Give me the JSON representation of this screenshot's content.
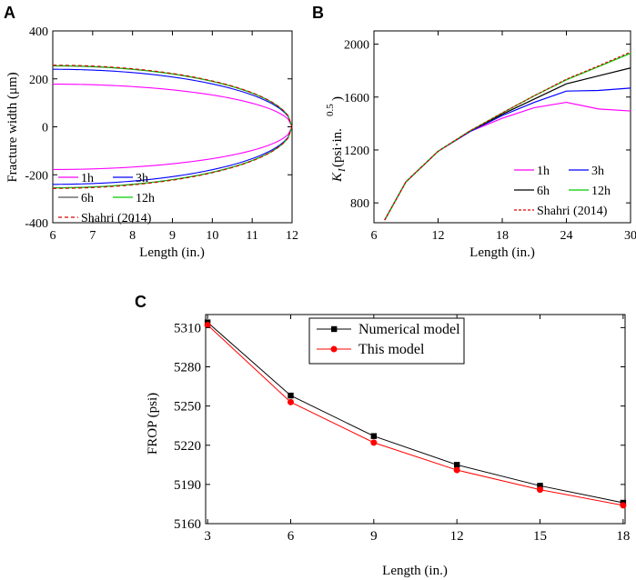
{
  "chart_data": [
    {
      "panel": "A",
      "type": "line",
      "xlabel": "Length (in.)",
      "ylabel": "Fracture width (μm)",
      "xlim": [
        6,
        12
      ],
      "ylim": [
        -400,
        400
      ],
      "xticks": [
        "6",
        "7",
        "8",
        "9",
        "10",
        "11",
        "12"
      ],
      "yticks": [
        "-400",
        "-200",
        "0",
        "200",
        "400"
      ],
      "tip_x": 12,
      "series": [
        {
          "name": "1h",
          "color": "#ff00ff",
          "dash": "",
          "half_width_at_6": 178
        },
        {
          "name": "3h",
          "color": "#0000ff",
          "dash": "",
          "half_width_at_6": 240
        },
        {
          "name": "6h",
          "color": "#555555",
          "dash": "",
          "half_width_at_6": 254
        },
        {
          "name": "12h",
          "color": "#00cc00",
          "dash": "",
          "half_width_at_6": 255
        },
        {
          "name": "Shahri (2014)",
          "color": "#dd0000",
          "dash": "4,3",
          "half_width_at_6": 257
        }
      ],
      "legend": [
        [
          "1h",
          "3h"
        ],
        [
          "6h",
          "12h"
        ],
        [
          "Shahri (2014)"
        ]
      ]
    },
    {
      "panel": "B",
      "type": "line",
      "xlabel": "Length (in.)",
      "ylabel_main": "K",
      "ylabel_sub": "I",
      "ylabel_rest": " (psi·in.",
      "ylabel_sup": "0.5",
      "ylabel_close": ")",
      "xlim": [
        6,
        30
      ],
      "ylim": [
        650,
        2100
      ],
      "xticks": [
        "6",
        "12",
        "18",
        "24",
        "30"
      ],
      "yticks": [
        "800",
        "1200",
        "1600",
        "2000"
      ],
      "series": [
        {
          "name": "1h",
          "color": "#ff00ff",
          "dash": "",
          "x": [
            7,
            9,
            12,
            15,
            18,
            21,
            24,
            27,
            30
          ],
          "y": [
            670,
            960,
            1190,
            1340,
            1440,
            1520,
            1560,
            1510,
            1495
          ]
        },
        {
          "name": "3h",
          "color": "#0000ff",
          "dash": "",
          "x": [
            7,
            9,
            12,
            15,
            18,
            21,
            24,
            27,
            30
          ],
          "y": [
            670,
            960,
            1190,
            1340,
            1460,
            1560,
            1645,
            1650,
            1668
          ]
        },
        {
          "name": "6h",
          "color": "#000000",
          "dash": "",
          "x": [
            7,
            9,
            12,
            15,
            18,
            21,
            24,
            27,
            30
          ],
          "y": [
            670,
            960,
            1190,
            1345,
            1470,
            1585,
            1700,
            1760,
            1820
          ]
        },
        {
          "name": "12h",
          "color": "#00cc00",
          "dash": "",
          "x": [
            7,
            9,
            12,
            15,
            18,
            21,
            24,
            27,
            30
          ],
          "y": [
            670,
            960,
            1190,
            1345,
            1480,
            1610,
            1730,
            1830,
            1930
          ]
        },
        {
          "name": "Shahri (2014)",
          "color": "#dd0000",
          "dash": "3,2",
          "x": [
            7,
            9,
            12,
            15,
            18,
            21,
            24,
            27,
            30
          ],
          "y": [
            670,
            960,
            1190,
            1345,
            1480,
            1610,
            1735,
            1835,
            1940
          ]
        }
      ],
      "legend": [
        [
          "1h",
          "3h"
        ],
        [
          "6h",
          "12h"
        ],
        [
          "Shahri (2014)"
        ]
      ]
    },
    {
      "panel": "C",
      "type": "line",
      "xlabel": "Length (in.)",
      "ylabel": "FROP (psi)",
      "xlim": [
        3,
        18
      ],
      "ylim": [
        5160,
        5320
      ],
      "xticks": [
        "3",
        "6",
        "9",
        "12",
        "15",
        "18"
      ],
      "yticks": [
        "5160",
        "5190",
        "5220",
        "5250",
        "5280",
        "5310"
      ],
      "series": [
        {
          "name": "Numerical model",
          "color": "#000000",
          "marker": "square",
          "x": [
            3,
            6,
            9,
            12,
            15,
            18
          ],
          "y": [
            5314,
            5258,
            5227,
            5205,
            5189,
            5176
          ]
        },
        {
          "name": "This model",
          "color": "#ff0000",
          "marker": "circle",
          "x": [
            3,
            6,
            9,
            12,
            15,
            18
          ],
          "y": [
            5312,
            5253,
            5222,
            5201,
            5186,
            5174
          ]
        }
      ]
    }
  ]
}
